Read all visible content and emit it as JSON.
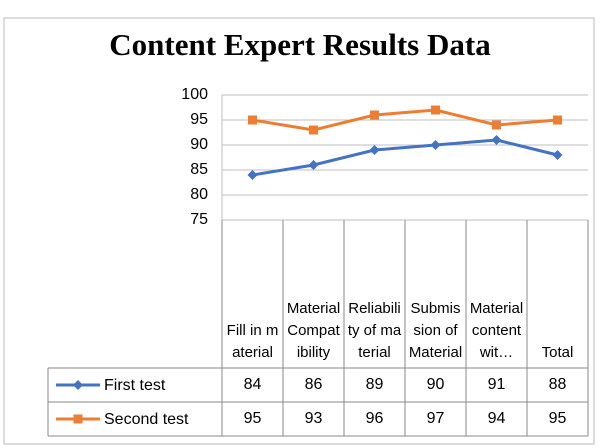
{
  "chart_data": {
    "type": "line",
    "title": "Content Expert Results Data",
    "categories": [
      "Fill in material",
      "Material Compatibility",
      "Reliability of material",
      "Submission of Material",
      "Material content wit…",
      "Total"
    ],
    "series": [
      {
        "name": "First test",
        "color": "#4472c4",
        "marker": "diamond",
        "values": [
          84,
          86,
          89,
          90,
          91,
          88
        ]
      },
      {
        "name": "Second test",
        "color": "#ed7d31",
        "marker": "square",
        "values": [
          95,
          93,
          96,
          97,
          94,
          95
        ]
      }
    ],
    "ylim": [
      75,
      100
    ],
    "yticks": [
      75,
      80,
      85,
      90,
      95,
      100
    ],
    "grid": true,
    "data_table": true
  }
}
